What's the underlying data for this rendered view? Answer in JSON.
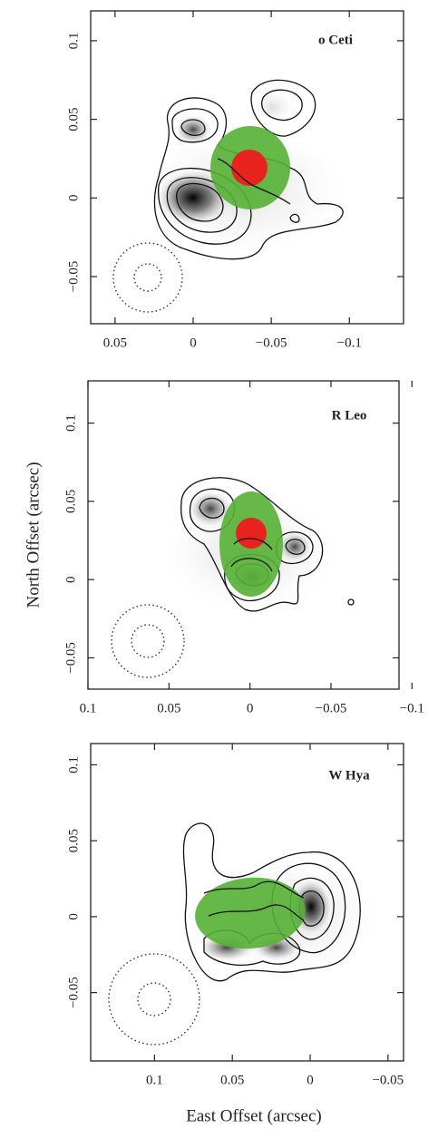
{
  "chart_data": [
    {
      "type": "contour",
      "title": "o Ceti",
      "xlim": [
        0.0656,
        -0.1347
      ],
      "ylim": [
        -0.08,
        0.119
      ],
      "xticks": [
        0.05,
        0,
        {
          "value": -0.05,
          "label": "−0.05"
        },
        {
          "value": -0.1,
          "label": "−0.1"
        }
      ],
      "yticks": [
        {
          "value": -0.05,
          "label": "−0.05"
        },
        0,
        0.05,
        0.1
      ]
    },
    {
      "type": "contour",
      "title": "R Leo",
      "ylabel": "North Offset (arcsec)",
      "xlim": [
        0.1,
        -0.092
      ],
      "ylim": [
        -0.07,
        0.127
      ],
      "xticks": [
        0.1,
        0.05,
        0,
        {
          "value": -0.05,
          "label": "−0.05"
        },
        {
          "value": -0.1,
          "label": "−0.1"
        }
      ],
      "yticks": [
        {
          "value": -0.05,
          "label": "−0.05"
        },
        0,
        0.05,
        0.1
      ]
    },
    {
      "type": "contour",
      "title": "W Hya",
      "xlabel": "East Offset (arcsec)",
      "xlim": [
        0.141,
        -0.06
      ],
      "ylim": [
        -0.095,
        0.114
      ],
      "xticks": [
        0.1,
        0.05,
        0,
        {
          "value": -0.05,
          "label": "−0.05"
        }
      ],
      "yticks": [
        {
          "value": -0.05,
          "label": "−0.05"
        },
        0,
        0.05,
        0.1
      ]
    }
  ]
}
